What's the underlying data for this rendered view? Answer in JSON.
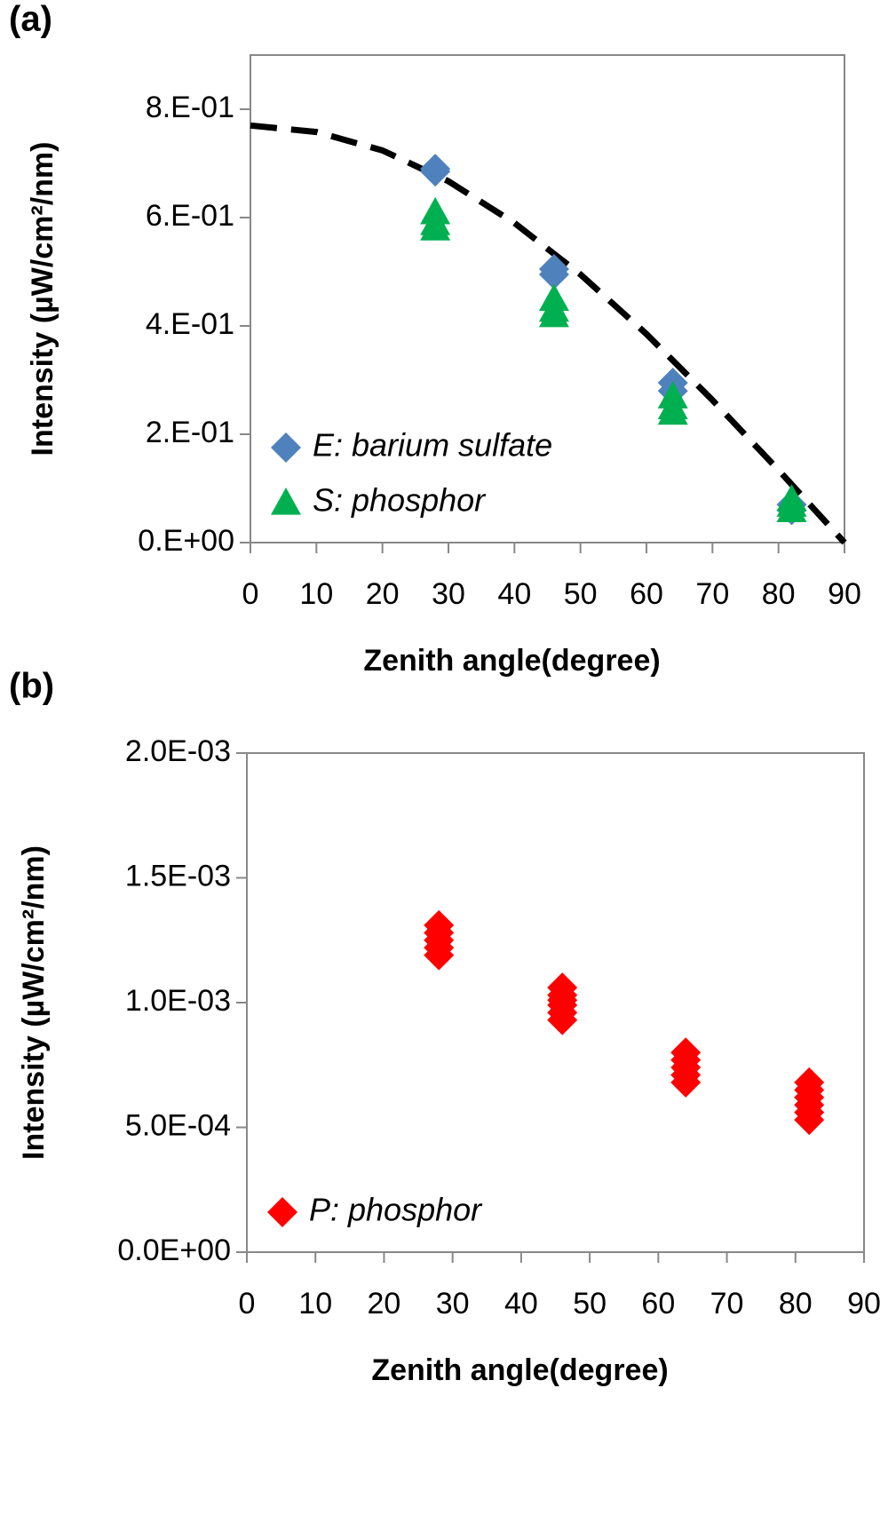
{
  "chart_data": [
    {
      "type": "scatter",
      "panel_label": "(a)",
      "x_label": "Zenith angle(degree)",
      "y_label": "Intensity (µW/cm²/nm)",
      "xlim": [
        0,
        90
      ],
      "ylim": [
        0,
        0.9
      ],
      "xticks": [
        0,
        10,
        20,
        30,
        40,
        50,
        60,
        70,
        80,
        90
      ],
      "yticks": [
        {
          "value": 0,
          "label": "0.E+00"
        },
        {
          "value": 0.2,
          "label": "2.E-01"
        },
        {
          "value": 0.4,
          "label": "4.E-01"
        },
        {
          "value": 0.6,
          "label": "6.E-01"
        },
        {
          "value": 0.8,
          "label": "8.E-01"
        }
      ],
      "legend": "lower left",
      "series": [
        {
          "name": "E: barium sulfate",
          "color": "#4f81bd",
          "marker": "diamond",
          "x": [
            28,
            28,
            46,
            46,
            64,
            64,
            82,
            82
          ],
          "values": [
            0.69,
            0.685,
            0.505,
            0.495,
            0.295,
            0.28,
            0.07,
            0.06
          ]
        },
        {
          "name": "S: phosphor",
          "color": "#00b050",
          "marker": "triangle",
          "x": [
            28,
            28,
            28,
            46,
            46,
            46,
            64,
            64,
            64,
            82,
            82,
            82
          ],
          "values": [
            0.58,
            0.59,
            0.61,
            0.42,
            0.43,
            0.45,
            0.24,
            0.25,
            0.27,
            0.06,
            0.07,
            0.08
          ]
        }
      ],
      "curve": {
        "color": "#000000",
        "dashed": true,
        "x": [
          0,
          10,
          20,
          30,
          40,
          50,
          60,
          70,
          80,
          90
        ],
        "values": [
          0.77,
          0.758,
          0.724,
          0.667,
          0.59,
          0.495,
          0.385,
          0.263,
          0.134,
          0
        ]
      }
    },
    {
      "type": "scatter",
      "panel_label": "(b)",
      "x_label": "Zenith angle(degree)",
      "y_label": "Intensity (µW/cm²/nm)",
      "xlim": [
        0,
        90
      ],
      "ylim": [
        0,
        0.002
      ],
      "xticks": [
        0,
        10,
        20,
        30,
        40,
        50,
        60,
        70,
        80,
        90
      ],
      "yticks": [
        {
          "value": 0,
          "label": "0.0E+00"
        },
        {
          "value": 0.0005,
          "label": "5.0E-04"
        },
        {
          "value": 0.001,
          "label": "1.0E-03"
        },
        {
          "value": 0.0015,
          "label": "1.5E-03"
        },
        {
          "value": 0.002,
          "label": "2.0E-03"
        }
      ],
      "legend": "lower left",
      "series": [
        {
          "name": "P: phosphor",
          "color": "#ff0000",
          "marker": "diamond",
          "x": [
            28,
            28,
            28,
            28,
            28,
            46,
            46,
            46,
            46,
            46,
            46,
            64,
            64,
            64,
            64,
            64,
            82,
            82,
            82,
            82,
            82,
            82
          ],
          "values": [
            0.00119,
            0.00122,
            0.00125,
            0.00128,
            0.00131,
            0.00093,
            0.00096,
            0.00099,
            0.00101,
            0.00103,
            0.00106,
            0.00068,
            0.00071,
            0.00074,
            0.00077,
            0.0008,
            0.00053,
            0.00056,
            0.00059,
            0.00062,
            0.00065,
            0.00068
          ]
        }
      ]
    }
  ]
}
